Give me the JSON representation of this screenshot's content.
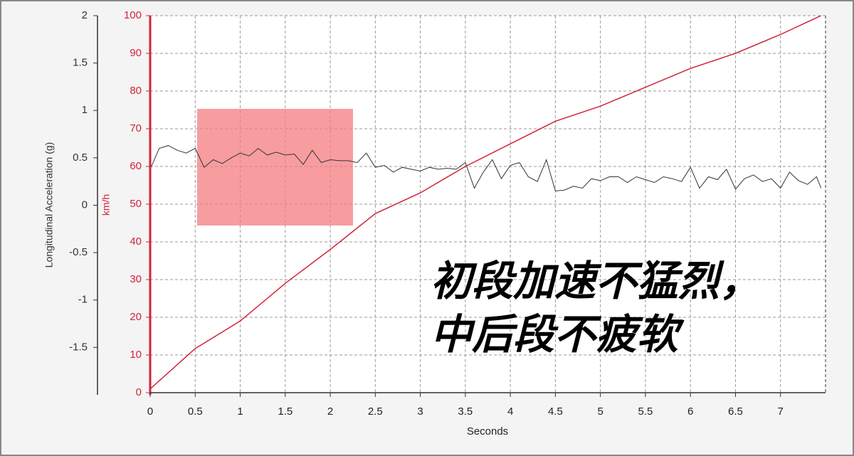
{
  "chart_data": {
    "type": "line",
    "xlabel": "Seconds",
    "ylabel": "km/h",
    "y2label": "Longitudinal Acceleration (g)",
    "xlim": [
      0,
      7.5
    ],
    "xticks": [
      0,
      0.5,
      1,
      1.5,
      2,
      2.5,
      3,
      3.5,
      4,
      4.5,
      5,
      5.5,
      6,
      6.5,
      7
    ],
    "ylim": [
      0,
      100
    ],
    "yticks": [
      0,
      10,
      20,
      30,
      40,
      50,
      60,
      70,
      80,
      90,
      100
    ],
    "y2lim": [
      -2,
      2
    ],
    "y2ticks": [
      -1.5,
      -1,
      -0.5,
      0,
      0.5,
      1,
      1.5,
      2
    ],
    "grid": true,
    "series": [
      {
        "color": "#d0243a",
        "x": [
          0,
          0.5,
          1,
          1.5,
          2,
          2.5,
          3,
          3.5,
          4,
          4.5,
          5,
          5.5,
          6,
          6.5,
          7,
          7.45
        ],
        "values": [
          1,
          11.7,
          19,
          29,
          38,
          47.5,
          53,
          60,
          66,
          72,
          76,
          81,
          86,
          90,
          95,
          100
        ]
      },
      {
        "color": "#333333",
        "axis": "y2",
        "x": [
          0,
          0.1,
          0.2,
          0.3,
          0.4,
          0.5,
          0.6,
          0.7,
          0.8,
          0.9,
          1.0,
          1.1,
          1.2,
          1.3,
          1.4,
          1.5,
          1.6,
          1.7,
          1.8,
          1.9,
          2.0,
          2.1,
          2.2,
          2.3,
          2.4,
          2.5,
          2.6,
          2.7,
          2.8,
          2.9,
          3.0,
          3.1,
          3.2,
          3.3,
          3.4,
          3.5,
          3.6,
          3.7,
          3.8,
          3.9,
          4.0,
          4.1,
          4.2,
          4.3,
          4.4,
          4.5,
          4.6,
          4.7,
          4.8,
          4.9,
          5.0,
          5.1,
          5.2,
          5.3,
          5.4,
          5.5,
          5.6,
          5.7,
          5.8,
          5.9,
          6.0,
          6.1,
          6.2,
          6.3,
          6.4,
          6.5,
          6.6,
          6.7,
          6.8,
          6.9,
          7.0,
          7.1,
          7.2,
          7.3,
          7.4,
          7.45
        ],
        "values": [
          0.38,
          0.6,
          0.63,
          0.58,
          0.55,
          0.6,
          0.4,
          0.48,
          0.44,
          0.5,
          0.55,
          0.52,
          0.6,
          0.53,
          0.56,
          0.53,
          0.54,
          0.43,
          0.58,
          0.45,
          0.48,
          0.47,
          0.47,
          0.45,
          0.55,
          0.4,
          0.42,
          0.35,
          0.4,
          0.38,
          0.36,
          0.4,
          0.38,
          0.39,
          0.38,
          0.45,
          0.18,
          0.35,
          0.48,
          0.28,
          0.42,
          0.45,
          0.3,
          0.25,
          0.48,
          0.15,
          0.16,
          0.2,
          0.18,
          0.28,
          0.26,
          0.3,
          0.3,
          0.24,
          0.3,
          0.27,
          0.24,
          0.3,
          0.28,
          0.25,
          0.4,
          0.18,
          0.3,
          0.27,
          0.38,
          0.17,
          0.28,
          0.32,
          0.25,
          0.28,
          0.18,
          0.35,
          0.26,
          0.22,
          0.3,
          0.18
        ]
      }
    ],
    "annotations": [
      "初段加速不猛烈，",
      "中后段不疲软"
    ]
  }
}
